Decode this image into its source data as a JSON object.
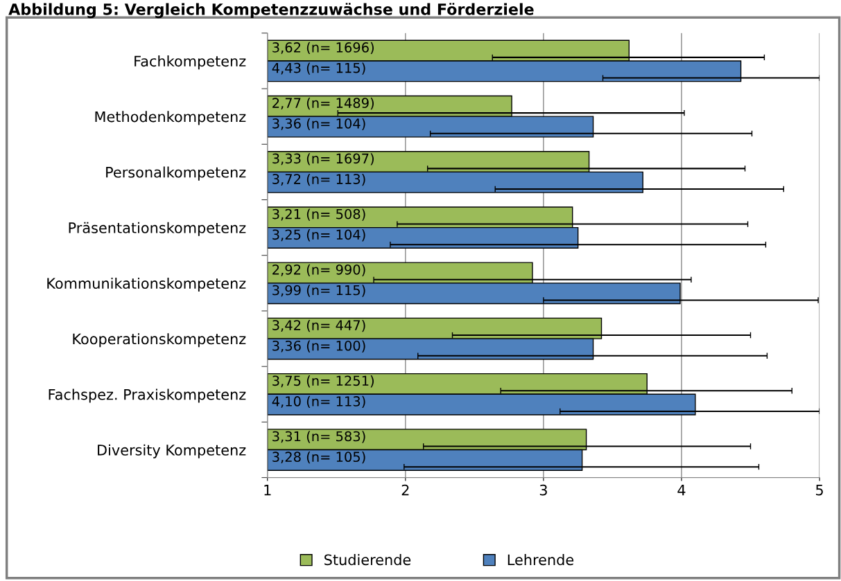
{
  "chart_data": {
    "type": "bar",
    "orientation": "horizontal",
    "title": "Abbildung 5: Vergleich Kompetenzzuwächse und Förderziele",
    "categories": [
      "Fachkompetenz",
      "Methodenkompetenz",
      "Personalkompetenz",
      "Präsentationskompetenz",
      "Kommunikationskompetenz",
      "Kooperationskompetenz",
      "Fachspez. Praxiskompetenz",
      "Diversity Kompetenz"
    ],
    "series": [
      {
        "name": "Studierende",
        "color": "#9bbb59",
        "values": [
          3.62,
          2.77,
          3.33,
          3.21,
          2.92,
          3.42,
          3.75,
          3.31
        ],
        "value_labels": [
          "3,62 (n= 1696)",
          "2,77 (n= 1489)",
          "3,33 (n= 1697)",
          "3,21 (n= 508)",
          "2,92 (n= 990)",
          "3,42 (n= 447)",
          "3,75 (n= 1251)",
          "3,31 (n= 583)"
        ],
        "errors": [
          [
            2.63,
            4.6
          ],
          [
            1.51,
            4.02
          ],
          [
            2.16,
            4.46
          ],
          [
            1.94,
            4.48
          ],
          [
            1.77,
            4.07
          ],
          [
            2.34,
            4.5
          ],
          [
            2.69,
            4.8
          ],
          [
            2.13,
            4.5
          ]
        ]
      },
      {
        "name": "Lehrende",
        "color": "#4f81bd",
        "values": [
          4.43,
          3.36,
          3.72,
          3.25,
          3.99,
          3.36,
          4.1,
          3.28
        ],
        "value_labels": [
          "4,43 (n= 115)",
          "3,36 (n= 104)",
          "3,72 (n= 113)",
          "3,25 (n= 104)",
          "3,99 (n= 115)",
          "3,36 (n= 100)",
          "4,10 (n= 113)",
          "3,28 (n= 105)"
        ],
        "errors": [
          [
            3.43,
            5
          ],
          [
            2.18,
            4.51
          ],
          [
            2.65,
            4.74
          ],
          [
            1.89,
            4.61
          ],
          [
            3.0,
            4.99
          ],
          [
            2.09,
            4.62
          ],
          [
            3.12,
            5
          ],
          [
            1.99,
            4.56
          ]
        ]
      }
    ],
    "xlim": [
      1,
      5
    ],
    "xticks": [
      1,
      2,
      3,
      4,
      5
    ],
    "grid": "x",
    "legend": "bottom"
  }
}
